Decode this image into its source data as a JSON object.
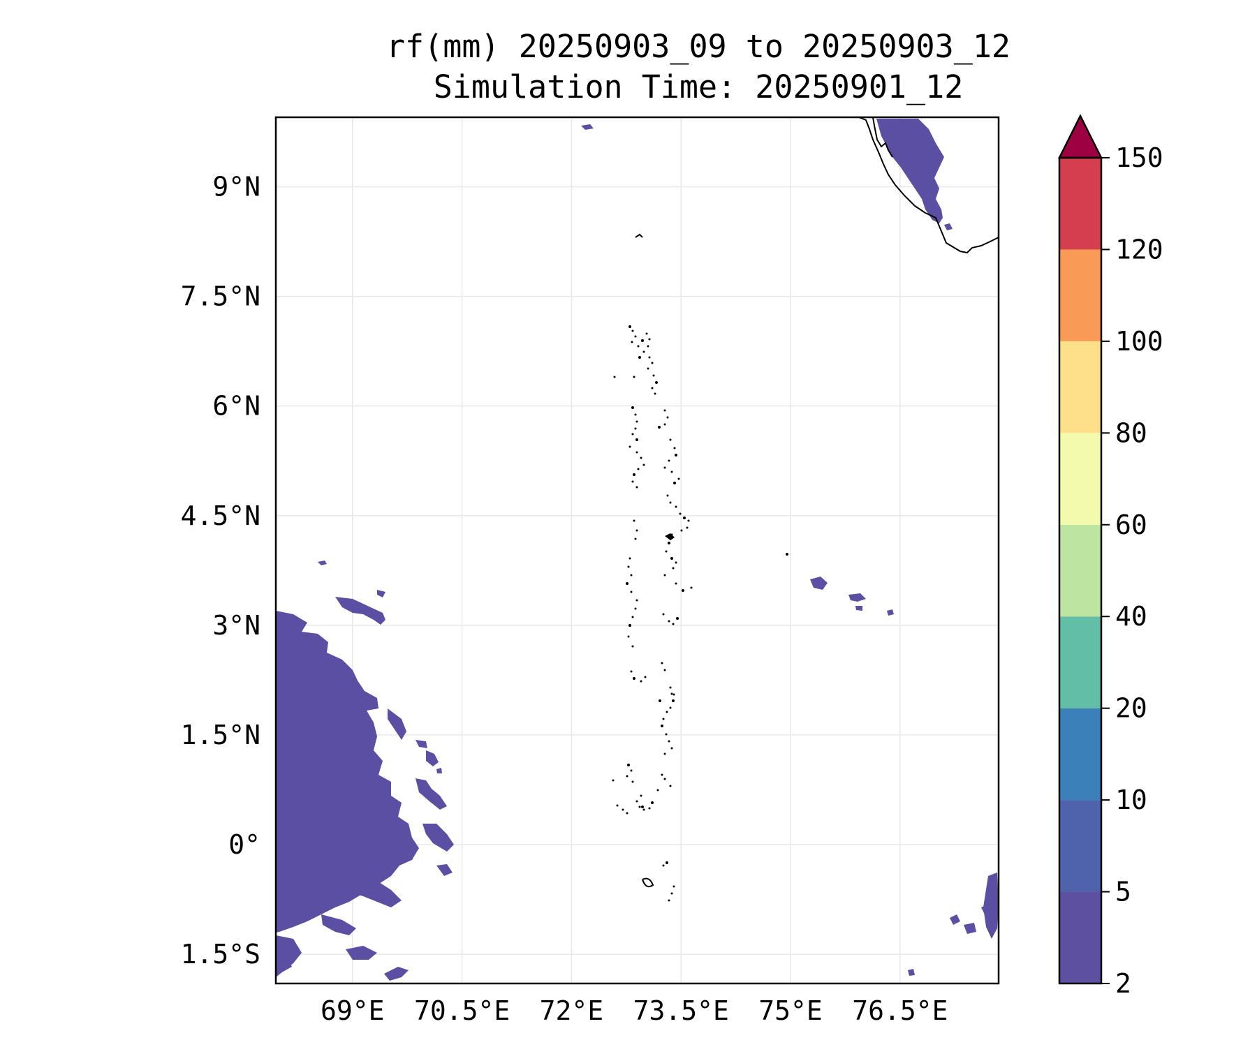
{
  "map": {
    "title_line1": "rf(mm) 20250903_09 to 20250903_12",
    "title_line2": "Simulation Time: 20250901_12",
    "extent": {
      "lon_min": 67.95,
      "lon_max": 77.85,
      "lat_min": -1.9,
      "lat_max": 9.95
    },
    "lon_ticks": [
      {
        "value": 69,
        "label": "69°E"
      },
      {
        "value": 70.5,
        "label": "70.5°E"
      },
      {
        "value": 72,
        "label": "72°E"
      },
      {
        "value": 73.5,
        "label": "73.5°E"
      },
      {
        "value": 75,
        "label": "75°E"
      },
      {
        "value": 76.5,
        "label": "76.5°E"
      }
    ],
    "lat_ticks": [
      {
        "value": 9,
        "label": "9°N"
      },
      {
        "value": 7.5,
        "label": "7.5°N"
      },
      {
        "value": 6,
        "label": "6°N"
      },
      {
        "value": 4.5,
        "label": "4.5°N"
      },
      {
        "value": 3,
        "label": "3°N"
      },
      {
        "value": 1.5,
        "label": "1.5°N"
      },
      {
        "value": 0,
        "label": "0°"
      },
      {
        "value": -1.5,
        "label": "1.5°S"
      }
    ],
    "gridlines": true,
    "rain_color": "#5a4fa3",
    "rain_color_secondary": "#4f62ad",
    "coast_color": "#000000"
  },
  "colorbar": {
    "levels": [
      {
        "value": 2,
        "label": "2"
      },
      {
        "value": 5,
        "label": "5"
      },
      {
        "value": 10,
        "label": "10"
      },
      {
        "value": 20,
        "label": "20"
      },
      {
        "value": 40,
        "label": "40"
      },
      {
        "value": 60,
        "label": "60"
      },
      {
        "value": 80,
        "label": "80"
      },
      {
        "value": 100,
        "label": "100"
      },
      {
        "value": 120,
        "label": "120"
      },
      {
        "value": 150,
        "label": "150"
      }
    ],
    "colors": [
      "#5e50a1",
      "#4f62ac",
      "#3b80b9",
      "#62bea6",
      "#bde4a0",
      "#f3faad",
      "#fee08b",
      "#f99b56",
      "#d53e4f"
    ],
    "extend_color": "#9e0142",
    "extend": "max",
    "placement": "right"
  }
}
